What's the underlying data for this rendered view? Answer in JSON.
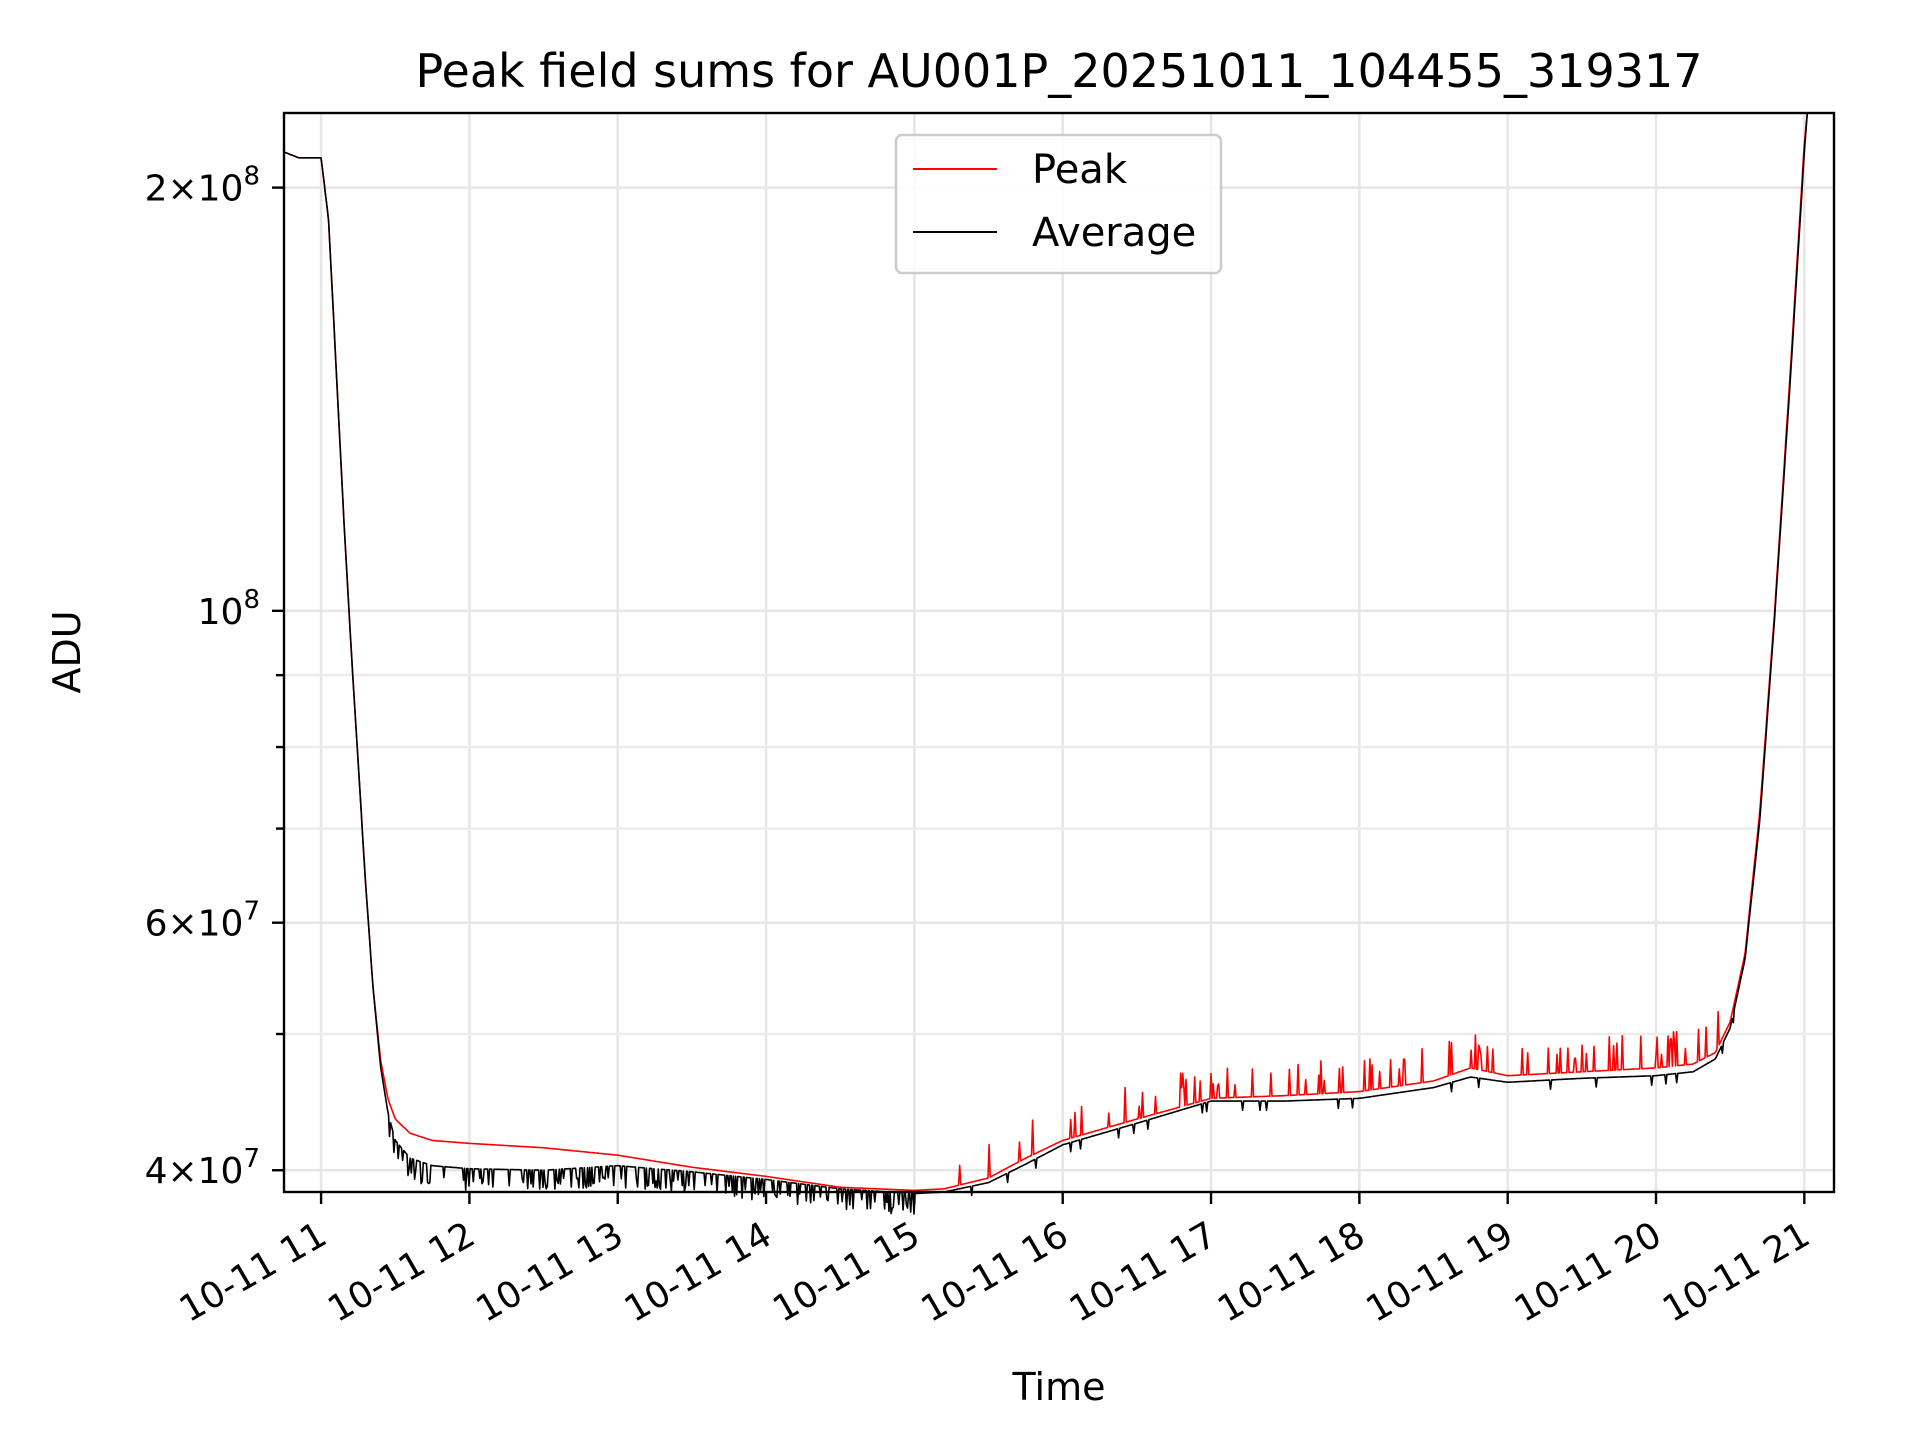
{
  "chart_data": {
    "type": "line",
    "title": "Peak field sums for AU001P_20251011_104455_319317",
    "xlabel": "Time",
    "ylabel": "ADU",
    "yscale": "log",
    "xlim": [
      10.75,
      21.2
    ],
    "ylim": [
      38600000,
      226000000
    ],
    "grid": true,
    "legend_position": "top-center",
    "x_ticks": [
      {
        "value": 11,
        "label": "10-11 11"
      },
      {
        "value": 12,
        "label": "10-11 12"
      },
      {
        "value": 13,
        "label": "10-11 13"
      },
      {
        "value": 14,
        "label": "10-11 14"
      },
      {
        "value": 15,
        "label": "10-11 15"
      },
      {
        "value": 16,
        "label": "10-11 16"
      },
      {
        "value": 17,
        "label": "10-11 17"
      },
      {
        "value": 18,
        "label": "10-11 18"
      },
      {
        "value": 19,
        "label": "10-11 19"
      },
      {
        "value": 20,
        "label": "10-11 20"
      },
      {
        "value": 21,
        "label": "10-11 21"
      }
    ],
    "y_major_ticks": [
      {
        "value": 40000000,
        "base": "4",
        "exp": "7"
      },
      {
        "value": 60000000,
        "base": "6",
        "exp": "7"
      },
      {
        "value": 100000000,
        "base": "10",
        "exp": "8"
      },
      {
        "value": 200000000,
        "base": "2",
        "exp": "8"
      }
    ],
    "y_minor_ticks": [
      50000000,
      70000000,
      80000000,
      90000000
    ],
    "series": [
      {
        "name": "Peak",
        "color": "#ff0000",
        "points": [
          [
            10.75,
            212000000
          ],
          [
            10.85,
            210000000
          ],
          [
            11.0,
            210000000
          ],
          [
            11.05,
            190000000
          ],
          [
            11.1,
            150000000
          ],
          [
            11.15,
            118000000
          ],
          [
            11.2,
            95000000
          ],
          [
            11.25,
            78000000
          ],
          [
            11.3,
            64000000
          ],
          [
            11.35,
            54000000
          ],
          [
            11.4,
            48000000
          ],
          [
            11.45,
            45000000
          ],
          [
            11.5,
            43500000
          ],
          [
            11.6,
            42500000
          ],
          [
            11.75,
            42000000
          ],
          [
            12.0,
            41800000
          ],
          [
            12.5,
            41500000
          ],
          [
            13.0,
            41000000
          ],
          [
            13.5,
            40200000
          ],
          [
            14.0,
            39600000
          ],
          [
            14.5,
            38900000
          ],
          [
            15.0,
            38700000
          ],
          [
            15.2,
            38800000
          ],
          [
            15.5,
            39500000
          ],
          [
            15.75,
            40800000
          ],
          [
            16.0,
            42000000
          ],
          [
            16.5,
            43500000
          ],
          [
            17.0,
            45000000
          ],
          [
            17.5,
            45200000
          ],
          [
            18.0,
            45500000
          ],
          [
            18.5,
            46300000
          ],
          [
            18.75,
            47300000
          ],
          [
            19.0,
            46700000
          ],
          [
            19.5,
            47000000
          ],
          [
            20.0,
            47300000
          ],
          [
            20.25,
            47600000
          ],
          [
            20.4,
            48500000
          ],
          [
            20.5,
            51000000
          ],
          [
            20.6,
            57000000
          ],
          [
            20.7,
            72000000
          ],
          [
            20.8,
            100000000
          ],
          [
            20.9,
            145000000
          ],
          [
            21.0,
            215000000
          ],
          [
            21.02,
            226000000
          ]
        ]
      },
      {
        "name": "Average",
        "color": "#000000",
        "points": [
          [
            10.75,
            212000000
          ],
          [
            10.85,
            210000000
          ],
          [
            11.0,
            210000000
          ],
          [
            11.05,
            190000000
          ],
          [
            11.1,
            150000000
          ],
          [
            11.15,
            118000000
          ],
          [
            11.2,
            95000000
          ],
          [
            11.25,
            78000000
          ],
          [
            11.3,
            64000000
          ],
          [
            11.35,
            54000000
          ],
          [
            11.4,
            47500000
          ],
          [
            11.45,
            44000000
          ],
          [
            11.5,
            42000000
          ],
          [
            11.6,
            40800000
          ],
          [
            11.75,
            40300000
          ],
          [
            12.0,
            40100000
          ],
          [
            12.5,
            40000000
          ],
          [
            13.0,
            40300000
          ],
          [
            13.5,
            39900000
          ],
          [
            14.0,
            39400000
          ],
          [
            14.5,
            38800000
          ],
          [
            15.0,
            38500000
          ],
          [
            15.2,
            38600000
          ],
          [
            15.5,
            39200000
          ],
          [
            15.75,
            40400000
          ],
          [
            16.0,
            41700000
          ],
          [
            16.5,
            43200000
          ],
          [
            17.0,
            44800000
          ],
          [
            17.5,
            44800000
          ],
          [
            18.0,
            45000000
          ],
          [
            18.5,
            45800000
          ],
          [
            18.75,
            46600000
          ],
          [
            19.0,
            46200000
          ],
          [
            19.5,
            46500000
          ],
          [
            20.0,
            46700000
          ],
          [
            20.25,
            47000000
          ],
          [
            20.4,
            48000000
          ],
          [
            20.5,
            50500000
          ],
          [
            20.6,
            56500000
          ],
          [
            20.7,
            71000000
          ],
          [
            20.8,
            99000000
          ],
          [
            20.9,
            143000000
          ],
          [
            21.0,
            212000000
          ],
          [
            21.02,
            226000000
          ]
        ]
      }
    ]
  }
}
